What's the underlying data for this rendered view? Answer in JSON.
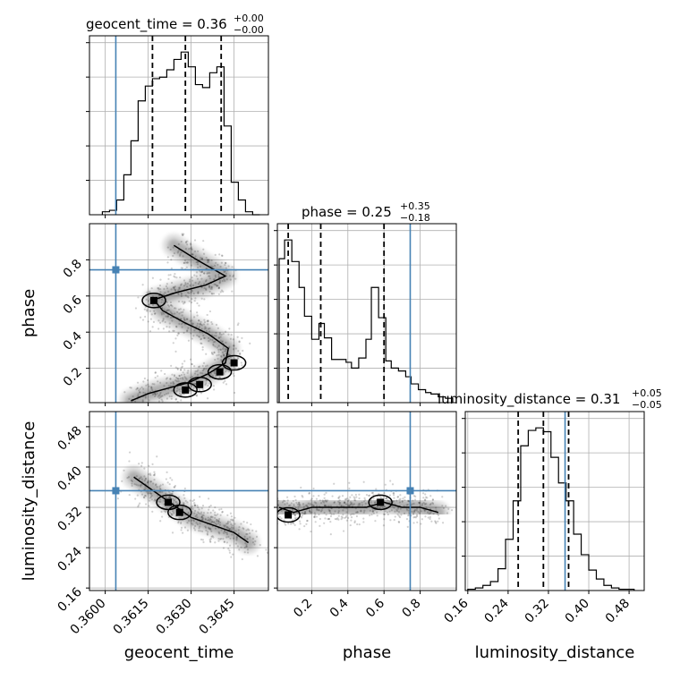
{
  "chart_data": {
    "type": "corner",
    "parameters": [
      "geocent_time",
      "phase",
      "luminosity_distance"
    ],
    "truth_color": "#4682b4",
    "truths": {
      "geocent_time": 0.36037,
      "phase": 0.745,
      "luminosity_distance": 0.353
    },
    "axes": {
      "geocent_time": {
        "range": [
          0.35945,
          0.3657
        ],
        "ticks": [
          "0.3600",
          "0.3615",
          "0.3630",
          "0.3645"
        ],
        "tick_values": [
          0.36,
          0.3615,
          0.363,
          0.3645
        ]
      },
      "phase": {
        "range": [
          0.01,
          1.0
        ],
        "ticks": [
          "0.2",
          "0.4",
          "0.6",
          "0.8"
        ],
        "tick_values": [
          0.2,
          0.4,
          0.6,
          0.8
        ]
      },
      "luminosity_distance": {
        "range": [
          0.155,
          0.51
        ],
        "ticks": [
          "0.16",
          "0.24",
          "0.32",
          "0.40",
          "0.48"
        ],
        "tick_values": [
          0.16,
          0.24,
          0.32,
          0.4,
          0.48
        ]
      }
    },
    "titles": {
      "geocent_time": {
        "prefix": "geocent_time = 0.36",
        "sup": "+0.00",
        "sub": "−0.00"
      },
      "phase": {
        "prefix": "phase = 0.25",
        "sup": "+0.35",
        "sub": "−0.18"
      },
      "luminosity_distance": {
        "prefix": "luminosity_distance = 0.31",
        "sup": "+0.05",
        "sub": "−0.05"
      }
    },
    "marginals": {
      "geocent_time": {
        "bin_edges": [
          0.3599,
          0.36015,
          0.3604,
          0.36065,
          0.3609,
          0.36115,
          0.3614,
          0.36165,
          0.3619,
          0.36215,
          0.3624,
          0.36265,
          0.3629,
          0.36315,
          0.3634,
          0.36365,
          0.3639,
          0.36415,
          0.3644,
          0.36465,
          0.3649,
          0.36515,
          0.3654
        ],
        "counts": [
          2,
          3,
          10,
          27,
          50,
          77,
          87,
          92,
          93,
          98,
          105,
          110,
          100,
          88,
          86,
          96,
          100,
          60,
          22,
          10,
          2,
          0
        ],
        "quantiles": [
          0.36165,
          0.3628,
          0.36405
        ]
      },
      "phase": {
        "bin_edges": [
          0.02,
          0.05,
          0.09,
          0.13,
          0.16,
          0.2,
          0.24,
          0.27,
          0.31,
          0.35,
          0.39,
          0.42,
          0.46,
          0.5,
          0.53,
          0.57,
          0.61,
          0.64,
          0.68,
          0.72,
          0.75,
          0.79,
          0.83,
          0.86,
          0.9,
          0.94,
          0.98
        ],
        "counts": [
          100,
          113,
          98,
          80,
          60,
          44,
          55,
          45,
          30,
          30,
          28,
          24,
          31,
          44,
          80,
          59,
          29,
          24,
          22,
          18,
          13,
          9,
          7,
          6,
          4,
          3
        ],
        "quantiles": [
          0.07,
          0.25,
          0.6
        ]
      },
      "luminosity_distance": {
        "bin_edges": [
          0.16,
          0.175,
          0.19,
          0.205,
          0.22,
          0.235,
          0.25,
          0.265,
          0.28,
          0.295,
          0.31,
          0.325,
          0.34,
          0.355,
          0.37,
          0.385,
          0.4,
          0.415,
          0.43,
          0.445,
          0.46,
          0.475,
          0.49
        ],
        "counts": [
          1,
          2,
          4,
          7,
          17,
          40,
          70,
          113,
          125,
          127,
          124,
          104,
          84,
          70,
          44,
          28,
          16,
          9,
          4,
          2,
          1,
          1
        ],
        "quantiles": [
          0.26,
          0.31,
          0.36
        ]
      }
    },
    "joint": {
      "phase_vs_geocent_time": {
        "ridge": [
          [
            0.3609,
            0.02
          ],
          [
            0.3615,
            0.06
          ],
          [
            0.3622,
            0.09
          ],
          [
            0.3629,
            0.12
          ],
          [
            0.3636,
            0.17
          ],
          [
            0.3642,
            0.23
          ],
          [
            0.3643,
            0.31
          ],
          [
            0.3636,
            0.39
          ],
          [
            0.3628,
            0.45
          ],
          [
            0.362,
            0.52
          ],
          [
            0.3617,
            0.58
          ],
          [
            0.3625,
            0.62
          ],
          [
            0.3635,
            0.66
          ],
          [
            0.3642,
            0.71
          ],
          [
            0.3632,
            0.8
          ],
          [
            0.3624,
            0.88
          ]
        ],
        "peaks": [
          [
            0.3617,
            0.575
          ],
          [
            0.3628,
            0.08
          ],
          [
            0.3633,
            0.11
          ],
          [
            0.364,
            0.18
          ],
          [
            0.3645,
            0.23
          ]
        ]
      },
      "luminosity_distance_vs_geocent_time": {
        "ridge": [
          [
            0.361,
            0.38
          ],
          [
            0.3615,
            0.36
          ],
          [
            0.362,
            0.34
          ],
          [
            0.3625,
            0.32
          ],
          [
            0.363,
            0.3
          ],
          [
            0.3635,
            0.29
          ],
          [
            0.364,
            0.28
          ],
          [
            0.3645,
            0.27
          ],
          [
            0.365,
            0.25
          ]
        ],
        "peaks": [
          [
            0.3626,
            0.31
          ],
          [
            0.3622,
            0.33
          ]
        ]
      },
      "luminosity_distance_vs_phase": {
        "ridge": [
          [
            0.02,
            0.32
          ],
          [
            0.1,
            0.31
          ],
          [
            0.2,
            0.32
          ],
          [
            0.3,
            0.32
          ],
          [
            0.4,
            0.32
          ],
          [
            0.5,
            0.32
          ],
          [
            0.6,
            0.33
          ],
          [
            0.7,
            0.32
          ],
          [
            0.8,
            0.32
          ],
          [
            0.9,
            0.31
          ]
        ],
        "peaks": [
          [
            0.07,
            0.305
          ],
          [
            0.58,
            0.33
          ]
        ]
      }
    }
  }
}
